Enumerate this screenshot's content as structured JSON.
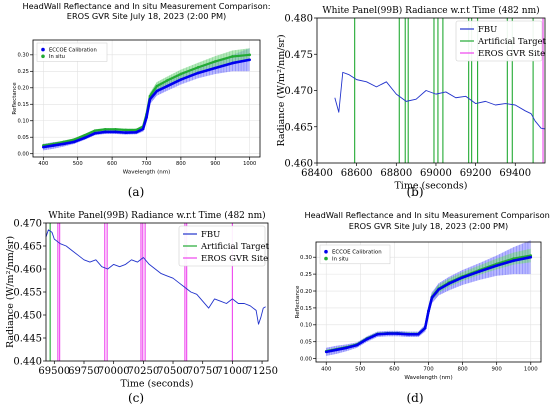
{
  "captions": [
    "(a)",
    "(b)",
    "(c)",
    "(d)"
  ],
  "chart_data": [
    {
      "type": "line",
      "title": "HeadWall Reflectance and In situ Measurement Comparison:",
      "subtitle": "EROS GVR Site July 18, 2023 (2:00 PM)",
      "xlabel": "Wavelength (nm)",
      "ylabel": "Reflectance",
      "xlim": [
        370,
        1030
      ],
      "ylim": [
        -0.01,
        0.345
      ],
      "xticks": [
        400,
        500,
        600,
        700,
        800,
        900,
        1000
      ],
      "yticks": [
        0.0,
        0.05,
        0.1,
        0.15,
        0.2,
        0.25,
        0.3
      ],
      "ytick_labels": [
        "0.00",
        "0.05",
        "0.10",
        "0.15",
        "0.20",
        "0.25",
        "0.30"
      ],
      "grid": true,
      "legend": "top-left",
      "colors": {
        "ecco": "#0000ee",
        "ecco_band": "#7d7dff",
        "insitu": "#22aa33",
        "insitu_band": "#7fd98a"
      },
      "series": [
        {
          "name": "ECCOE Calibration",
          "x": [
            400,
            430,
            460,
            490,
            520,
            550,
            580,
            610,
            640,
            670,
            690,
            700,
            710,
            730,
            760,
            800,
            850,
            900,
            950,
            1000
          ],
          "y": [
            0.02,
            0.025,
            0.03,
            0.036,
            0.048,
            0.062,
            0.066,
            0.066,
            0.064,
            0.065,
            0.075,
            0.11,
            0.165,
            0.19,
            0.205,
            0.225,
            0.245,
            0.26,
            0.275,
            0.285
          ],
          "band": [
            0.01,
            0.01,
            0.008,
            0.006,
            0.006,
            0.006,
            0.006,
            0.006,
            0.006,
            0.006,
            0.008,
            0.012,
            0.014,
            0.014,
            0.014,
            0.015,
            0.016,
            0.018,
            0.025,
            0.035
          ]
        },
        {
          "name": "In situ",
          "x": [
            400,
            430,
            460,
            490,
            520,
            550,
            580,
            610,
            640,
            670,
            690,
            700,
            710,
            730,
            760,
            800,
            850,
            900,
            950,
            1000
          ],
          "y": [
            0.025,
            0.03,
            0.036,
            0.043,
            0.056,
            0.07,
            0.074,
            0.074,
            0.072,
            0.072,
            0.082,
            0.12,
            0.175,
            0.205,
            0.222,
            0.242,
            0.262,
            0.28,
            0.295,
            0.3
          ],
          "band": [
            0.004,
            0.004,
            0.004,
            0.004,
            0.004,
            0.004,
            0.004,
            0.004,
            0.004,
            0.004,
            0.005,
            0.008,
            0.01,
            0.012,
            0.012,
            0.013,
            0.014,
            0.016,
            0.018,
            0.02
          ]
        }
      ]
    },
    {
      "type": "line",
      "title": "White Panel(99B) Radiance w.r.t Time (482 nm)",
      "xlabel": "Time (seconds)",
      "ylabel": "Radiance (W/m²/nm/sr)",
      "xlim": [
        68400,
        69550
      ],
      "ylim": [
        0.46,
        0.48
      ],
      "xticks": [
        68400,
        68600,
        68800,
        69000,
        69200,
        69400
      ],
      "yticks": [
        0.46,
        0.465,
        0.47,
        0.475,
        0.48
      ],
      "ytick_labels": [
        "0.460",
        "0.465",
        "0.470",
        "0.475",
        "0.480"
      ],
      "legend": "top-right",
      "colors": {
        "fbu": "#2233cc",
        "artificial": "#22aa33",
        "eros": "#ee44ee"
      },
      "series": [
        {
          "name": "FBU",
          "x": [
            68490,
            68510,
            68530,
            68560,
            68600,
            68650,
            68700,
            68750,
            68800,
            68850,
            68900,
            68950,
            69000,
            69050,
            69100,
            69150,
            69200,
            69250,
            69300,
            69350,
            69400,
            69450,
            69480,
            69500,
            69530,
            69550
          ],
          "y": [
            0.469,
            0.467,
            0.4725,
            0.4722,
            0.4715,
            0.4712,
            0.4705,
            0.4712,
            0.4695,
            0.4685,
            0.4688,
            0.47,
            0.4695,
            0.4698,
            0.469,
            0.4692,
            0.4682,
            0.4685,
            0.468,
            0.4682,
            0.468,
            0.4672,
            0.4668,
            0.4658,
            0.4648,
            0.4647
          ]
        },
        {
          "name": "Artificial Target",
          "vlines": [
            68590,
            68815,
            68845,
            68860,
            68990,
            69010,
            69035,
            69165,
            69180,
            69210,
            69360,
            69385,
            69490
          ]
        },
        {
          "name": "EROS GVR Site",
          "vlines": [
            69540
          ]
        }
      ]
    },
    {
      "type": "line",
      "title": "White Panel(99B) Radiance w.r.t Time (482 nm)",
      "xlabel": "Time (seconds)",
      "ylabel": "Radiance (W/m²/nm/sr)",
      "xlim": [
        69430,
        71300
      ],
      "ylim": [
        0.44,
        0.47
      ],
      "xticks": [
        69500,
        69750,
        70000,
        70250,
        70500,
        70750,
        71000,
        71250
      ],
      "yticks": [
        0.44,
        0.445,
        0.45,
        0.455,
        0.46,
        0.465,
        0.47
      ],
      "ytick_labels": [
        "0.440",
        "0.445",
        "0.450",
        "0.455",
        "0.460",
        "0.465",
        "0.470"
      ],
      "legend": "top-right",
      "colors": {
        "fbu": "#2233cc",
        "artificial": "#22aa33",
        "eros": "#ee44ee"
      },
      "series": [
        {
          "name": "FBU",
          "x": [
            69430,
            69450,
            69480,
            69500,
            69550,
            69600,
            69650,
            69700,
            69750,
            69800,
            69850,
            69900,
            69950,
            70000,
            70050,
            70100,
            70150,
            70200,
            70250,
            70300,
            70350,
            70400,
            70450,
            70500,
            70550,
            70600,
            70650,
            70700,
            70750,
            70800,
            70850,
            70900,
            70950,
            71000,
            71050,
            71100,
            71150,
            71200,
            71220,
            71240,
            71260,
            71280
          ],
          "y": [
            0.467,
            0.4685,
            0.468,
            0.4665,
            0.4655,
            0.465,
            0.464,
            0.463,
            0.462,
            0.4615,
            0.462,
            0.4605,
            0.46,
            0.461,
            0.4605,
            0.461,
            0.462,
            0.4615,
            0.4625,
            0.461,
            0.46,
            0.459,
            0.4585,
            0.458,
            0.457,
            0.456,
            0.455,
            0.4545,
            0.453,
            0.4515,
            0.4535,
            0.453,
            0.4525,
            0.4535,
            0.4525,
            0.4525,
            0.452,
            0.451,
            0.448,
            0.4495,
            0.4515,
            0.4518
          ]
        },
        {
          "name": "Artificial Target",
          "vlines": [
            69465
          ]
        },
        {
          "name": "EROS GVR Site",
          "vlines": [
            69530,
            69545,
            69925,
            69945,
            70230,
            70245,
            70265,
            70600,
            70615,
            71000
          ]
        }
      ]
    },
    {
      "type": "line",
      "title": "HeadWall Reflectance and In situ Measurement Comparison:",
      "subtitle": "EROS GVR Site July 18, 2023 (2:00 PM)",
      "xlabel": "Wavelength (nm)",
      "ylabel": "Reflectance",
      "xlim": [
        370,
        1030
      ],
      "ylim": [
        -0.01,
        0.345
      ],
      "xticks": [
        400,
        500,
        600,
        700,
        800,
        900,
        1000
      ],
      "yticks": [
        0.0,
        0.05,
        0.1,
        0.15,
        0.2,
        0.25,
        0.3
      ],
      "ytick_labels": [
        "0.00",
        "0.05",
        "0.10",
        "0.15",
        "0.20",
        "0.25",
        "0.30"
      ],
      "grid": true,
      "legend": "top-left",
      "colors": {
        "ecco": "#0000ee",
        "ecco_band": "#7d7dff",
        "insitu": "#22aa33",
        "insitu_band": "#7fd98a"
      },
      "series": [
        {
          "name": "ECCOE Calibration",
          "x": [
            400,
            430,
            460,
            490,
            520,
            550,
            580,
            610,
            640,
            670,
            690,
            700,
            710,
            730,
            760,
            800,
            850,
            900,
            950,
            1000
          ],
          "y": [
            0.02,
            0.026,
            0.032,
            0.04,
            0.058,
            0.072,
            0.074,
            0.074,
            0.072,
            0.072,
            0.09,
            0.14,
            0.18,
            0.205,
            0.222,
            0.24,
            0.258,
            0.275,
            0.29,
            0.3
          ],
          "band": [
            0.012,
            0.012,
            0.01,
            0.008,
            0.008,
            0.008,
            0.008,
            0.008,
            0.008,
            0.008,
            0.01,
            0.014,
            0.016,
            0.018,
            0.02,
            0.022,
            0.025,
            0.03,
            0.04,
            0.05
          ]
        },
        {
          "name": "In situ",
          "x": [
            400,
            430,
            460,
            490,
            520,
            550,
            580,
            610,
            640,
            670,
            690,
            700,
            710,
            730,
            760,
            800,
            850,
            900,
            950,
            1000
          ],
          "y": [
            0.022,
            0.028,
            0.034,
            0.042,
            0.06,
            0.073,
            0.075,
            0.075,
            0.073,
            0.073,
            0.091,
            0.142,
            0.182,
            0.207,
            0.225,
            0.243,
            0.262,
            0.28,
            0.296,
            0.305
          ],
          "band": [
            0.004,
            0.004,
            0.004,
            0.004,
            0.004,
            0.004,
            0.004,
            0.004,
            0.004,
            0.004,
            0.005,
            0.008,
            0.01,
            0.012,
            0.012,
            0.013,
            0.014,
            0.016,
            0.018,
            0.02
          ]
        }
      ]
    }
  ]
}
